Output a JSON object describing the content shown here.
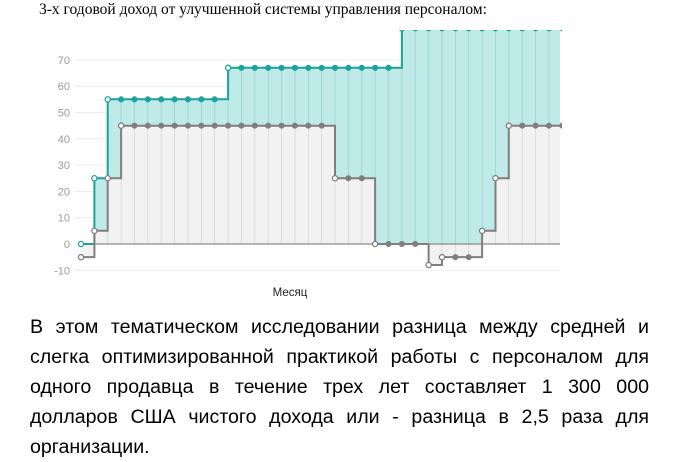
{
  "title": "3-х годовой доход от улучшенной системы управления персоналом:",
  "body_text": "В этом тематическом исследовании разница между средней и слегка оптимизированной практикой работы с персоналом для одного продавца в течение трех лет составляет 1 300 000 долларов США чистого дохода или - разница в 2,5 раза для организации.",
  "colors": {
    "optimized_line": "#1aa39a",
    "optimized_fill": "#bfeae7",
    "average_line": "#7f7f7f",
    "average_fill": "#f2f2f2",
    "grid": "#ececec",
    "tick_text": "#9a9a9a"
  },
  "chart_data": {
    "type": "area",
    "xlabel": "Месяц",
    "ylabel": "",
    "ylim": [
      -10,
      80
    ],
    "yticks": [
      -10,
      0,
      10,
      20,
      30,
      40,
      50,
      60,
      70
    ],
    "grid": true,
    "step": true,
    "x": [
      0,
      1,
      2,
      3,
      4,
      5,
      6,
      7,
      8,
      9,
      10,
      11,
      12,
      13,
      14,
      15,
      16,
      17,
      18,
      19,
      20,
      21,
      22,
      23,
      24,
      25,
      26,
      27,
      28,
      29,
      30,
      31,
      32,
      33,
      34,
      35,
      36
    ],
    "series": [
      {
        "values": [
          0,
          25,
          55,
          55,
          55,
          55,
          55,
          55,
          55,
          55,
          55,
          67,
          67,
          67,
          67,
          67,
          67,
          67,
          67,
          67,
          67,
          67,
          67,
          67,
          82,
          82,
          82,
          82,
          82,
          82,
          82,
          82,
          82,
          82,
          82,
          82,
          82
        ]
      },
      {
        "values": [
          -5,
          5,
          25,
          45,
          45,
          45,
          45,
          45,
          45,
          45,
          45,
          45,
          45,
          45,
          45,
          45,
          45,
          45,
          45,
          25,
          25,
          25,
          0,
          0,
          0,
          0,
          -8,
          -5,
          -5,
          -5,
          5,
          25,
          45,
          45,
          45,
          45,
          45
        ]
      }
    ]
  }
}
